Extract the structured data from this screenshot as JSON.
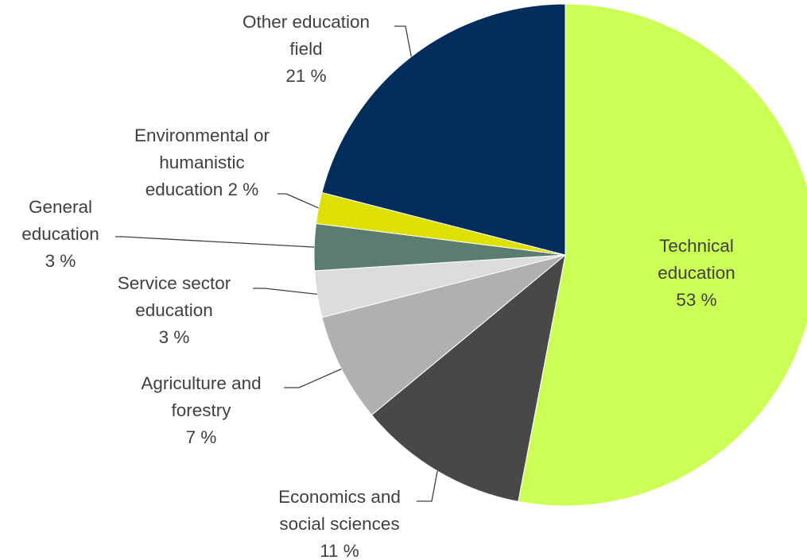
{
  "chart_data": {
    "type": "pie",
    "title": "",
    "slices": [
      {
        "name": "Technical education",
        "label_lines": [
          "Technical",
          "education",
          "53 %"
        ],
        "value": 53,
        "value_label": "53 %",
        "color": "#ccff55"
      },
      {
        "name": "Economics and social sciences",
        "label_lines": [
          "Economics and",
          "social sciences",
          "11 %"
        ],
        "value": 11,
        "value_label": "11 %",
        "color": "#484848"
      },
      {
        "name": "Agriculture and forestry",
        "label_lines": [
          "Agriculture and",
          "forestry",
          "7 %"
        ],
        "value": 7,
        "value_label": "7 %",
        "color": "#b0b0b0"
      },
      {
        "name": "Service sector education",
        "label_lines": [
          "Service sector",
          "education",
          "3 %"
        ],
        "value": 3,
        "value_label": "3 %",
        "color": "#dcdcdc"
      },
      {
        "name": "General education",
        "label_lines": [
          "General",
          "education",
          "3 %"
        ],
        "value": 3,
        "value_label": "3 %",
        "color": "#5a7d70"
      },
      {
        "name": "Environmental or humanistic education",
        "label_lines": [
          "Environmental or",
          "humanistic",
          "education  2 %"
        ],
        "value": 2,
        "value_label": "2 %",
        "color": "#dde000"
      },
      {
        "name": "Other education field",
        "label_lines": [
          "Other education",
          "field",
          "21 %"
        ],
        "value": 21,
        "value_label": "21 %",
        "color": "#002d5c"
      }
    ],
    "start_angle": "12 o'clock",
    "direction": "clockwise",
    "legend": "none"
  }
}
